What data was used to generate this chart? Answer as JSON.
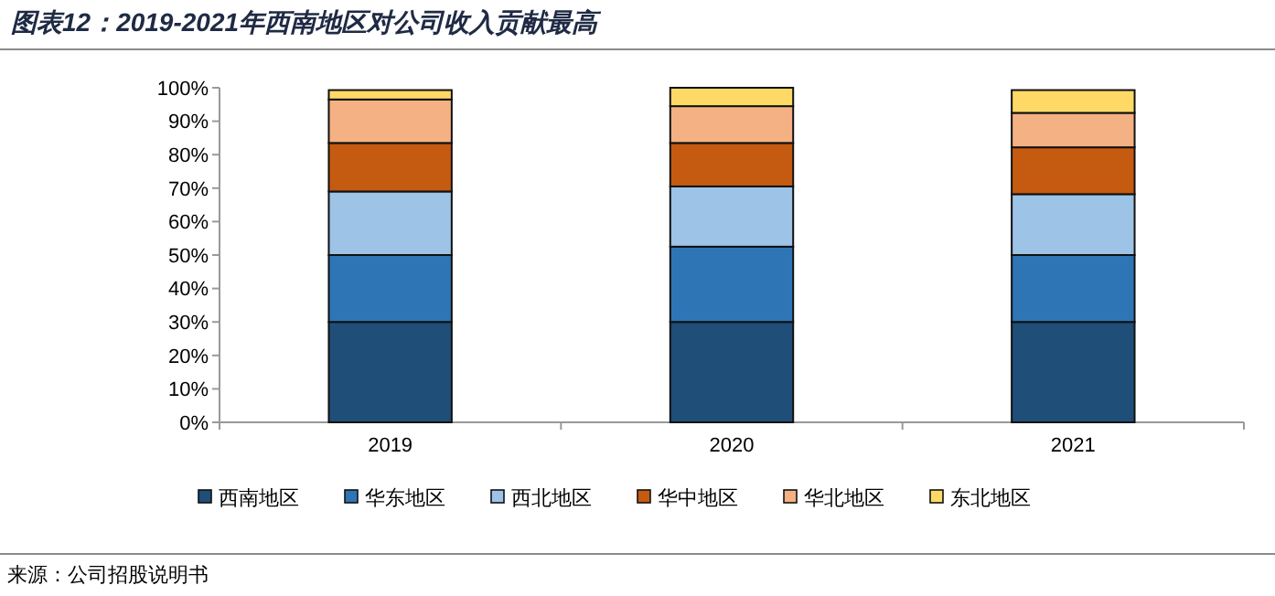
{
  "chart_data": {
    "type": "bar",
    "title": "图表12：2019-2021年西南地区对公司收入贡献最高",
    "categories": [
      "2019",
      "2020",
      "2021"
    ],
    "stacked": true,
    "legend": "bottom",
    "ylim": [
      0,
      100
    ],
    "yticks": [
      {
        "value": 0,
        "label": "0%"
      },
      {
        "value": 10,
        "label": "10%"
      },
      {
        "value": 20,
        "label": "20%"
      },
      {
        "value": 30,
        "label": "30%"
      },
      {
        "value": 40,
        "label": "40%"
      },
      {
        "value": 50,
        "label": "50%"
      },
      {
        "value": 60,
        "label": "60%"
      },
      {
        "value": 70,
        "label": "70%"
      },
      {
        "value": 80,
        "label": "80%"
      },
      {
        "value": 90,
        "label": "90%"
      },
      {
        "value": 100,
        "label": "100%"
      }
    ],
    "series": [
      {
        "name": "西南地区",
        "color": "#1f4e79",
        "values": [
          30,
          30,
          30
        ]
      },
      {
        "name": "华东地区",
        "color": "#2e75b6",
        "values": [
          20,
          22.5,
          20
        ]
      },
      {
        "name": "西北地区",
        "color": "#9dc3e6",
        "values": [
          19,
          18,
          18.2
        ]
      },
      {
        "name": "华中地区",
        "color": "#c55a11",
        "values": [
          14.5,
          13,
          14
        ]
      },
      {
        "name": "华北地区",
        "color": "#f4b183",
        "values": [
          13,
          11,
          10.3
        ]
      },
      {
        "name": "东北地区",
        "color": "#ffd966",
        "values": [
          2.8,
          5.5,
          6.8
        ]
      }
    ],
    "annotations": [
      "来源：公司招股说明书"
    ]
  }
}
